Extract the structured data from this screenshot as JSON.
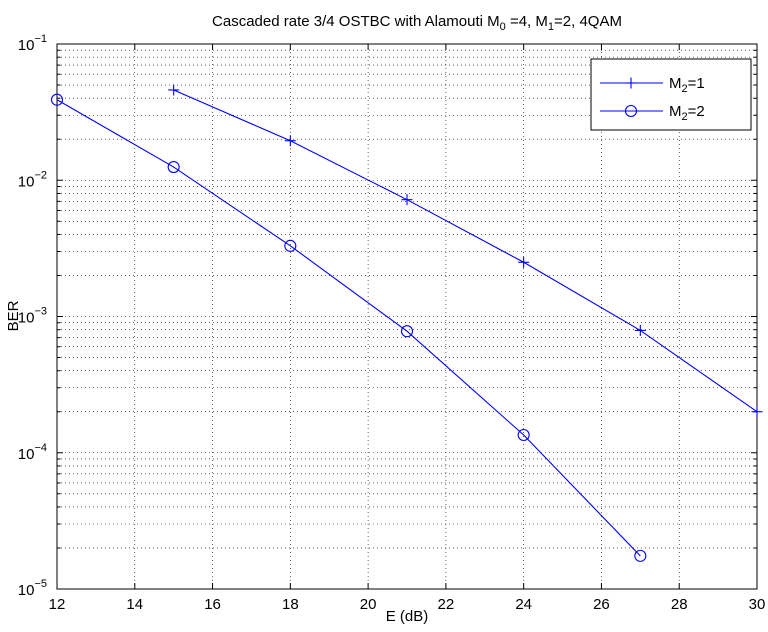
{
  "chart_data": {
    "type": "line",
    "title": {
      "prefix": "Cascaded rate 3/4 OSTBC with Alamouti M",
      "sub0": "0",
      "mid1": " =4, M",
      "sub1": "1",
      "suffix": "=2, 4QAM"
    },
    "xlabel": "E (dB)",
    "ylabel": "BER",
    "xlim": [
      12,
      30
    ],
    "ylim": [
      1e-05,
      0.1
    ],
    "yscale": "log",
    "grid": true,
    "legend_position": "top-right",
    "x_ticks": [
      {
        "value": 12,
        "label": "12"
      },
      {
        "value": 14,
        "label": "14"
      },
      {
        "value": 16,
        "label": "16"
      },
      {
        "value": 18,
        "label": "18"
      },
      {
        "value": 20,
        "label": "20"
      },
      {
        "value": 22,
        "label": "22"
      },
      {
        "value": 24,
        "label": "24"
      },
      {
        "value": 26,
        "label": "26"
      },
      {
        "value": 28,
        "label": "28"
      },
      {
        "value": 30,
        "label": "30"
      }
    ],
    "y_ticks": [
      {
        "value": 1e-05,
        "base": "10",
        "exp": "−5"
      },
      {
        "value": 0.0001,
        "base": "10",
        "exp": "−4"
      },
      {
        "value": 0.001,
        "base": "10",
        "exp": "−3"
      },
      {
        "value": 0.01,
        "base": "10",
        "exp": "−2"
      },
      {
        "value": 0.1,
        "base": "10",
        "exp": "−1"
      }
    ],
    "series": [
      {
        "legend_base": "M",
        "legend_sub": "2",
        "legend_rest": "=1",
        "marker": "plus",
        "color": "#0000ff",
        "x": [
          15,
          18,
          21,
          24,
          27,
          30
        ],
        "y": [
          0.046,
          0.0195,
          0.0072,
          0.0025,
          0.00079,
          0.0002
        ]
      },
      {
        "legend_base": "M",
        "legend_sub": "2",
        "legend_rest": "=2",
        "marker": "circle",
        "color": "#0000ff",
        "x": [
          12,
          15,
          18,
          21,
          24,
          27
        ],
        "y": [
          0.039,
          0.0125,
          0.0033,
          0.00078,
          0.000135,
          1.75e-05
        ]
      }
    ]
  }
}
